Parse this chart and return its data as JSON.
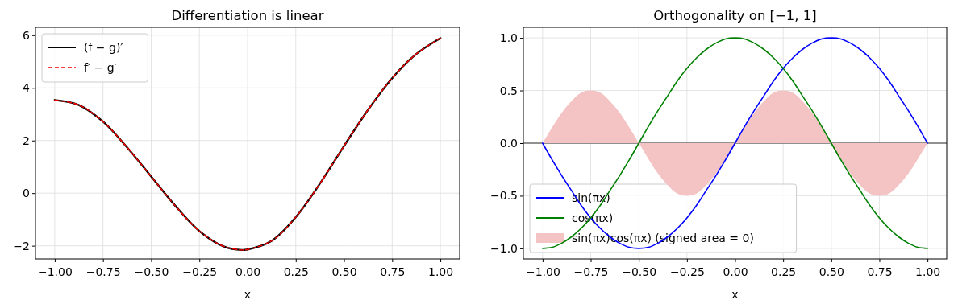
{
  "chart_data": [
    {
      "type": "line",
      "title": "Differentiation is linear",
      "xlabel": "x",
      "grid": true,
      "legend": "top left",
      "x": [
        -1,
        -0.875,
        -0.75,
        -0.625,
        -0.5,
        -0.375,
        -0.25,
        -0.125,
        -0.03,
        0,
        0.125,
        0.25,
        0.375,
        0.5,
        0.625,
        0.75,
        0.875,
        1
      ],
      "series": [
        {
          "name": "(f − g)′",
          "color": "#000000",
          "line_style": "solid",
          "values": [
            3.54,
            3.35,
            2.72,
            1.74,
            0.63,
            -0.48,
            -1.44,
            -2.02,
            -2.16,
            -2.14,
            -1.81,
            -0.91,
            0.36,
            1.79,
            3.17,
            4.37,
            5.29,
            5.89
          ]
        },
        {
          "name": "f′ − g′",
          "color": "#ff0000",
          "line_style": "dashed",
          "values": [
            3.54,
            3.35,
            2.72,
            1.74,
            0.63,
            -0.48,
            -1.44,
            -2.02,
            -2.16,
            -2.14,
            -1.81,
            -0.91,
            0.36,
            1.79,
            3.17,
            4.37,
            5.29,
            5.89
          ]
        }
      ],
      "xlim": [
        -1.1,
        1.1
      ],
      "xticks": [
        {
          "value": -1,
          "label": "−1.00"
        },
        {
          "value": -0.75,
          "label": "−0.75"
        },
        {
          "value": -0.5,
          "label": "−0.50"
        },
        {
          "value": -0.25,
          "label": "−0.25"
        },
        {
          "value": 0,
          "label": "0.00"
        },
        {
          "value": 0.25,
          "label": "0.25"
        },
        {
          "value": 0.5,
          "label": "0.50"
        },
        {
          "value": 0.75,
          "label": "0.75"
        },
        {
          "value": 1,
          "label": "1.00"
        }
      ],
      "ylim": [
        -2.5,
        6.3
      ],
      "yticks": [
        {
          "value": -2,
          "label": "−2"
        },
        0,
        2,
        4,
        6
      ]
    },
    {
      "type": "line",
      "title": "Orthogonality on [−1, 1]",
      "xlabel": "x",
      "grid": true,
      "legend": "bottom left",
      "x": [
        -1,
        -0.95,
        -0.9,
        -0.85,
        -0.8,
        -0.75,
        -0.7,
        -0.65,
        -0.6,
        -0.55,
        -0.5,
        -0.45,
        -0.4,
        -0.35,
        -0.3,
        -0.25,
        -0.2,
        -0.15,
        -0.1,
        -0.05,
        0,
        0.05,
        0.1,
        0.15,
        0.2,
        0.25,
        0.3,
        0.35,
        0.4,
        0.45,
        0.5,
        0.55,
        0.6,
        0.65,
        0.7,
        0.75,
        0.8,
        0.85,
        0.9,
        0.95,
        1
      ],
      "series": [
        {
          "type": "area",
          "name": "sin(πx)cos(πx) (signed area = 0)",
          "color": "#f4c4c4",
          "values": [
            0,
            0.15,
            0.29,
            0.4,
            0.48,
            0.5,
            0.48,
            0.4,
            0.29,
            0.15,
            0,
            -0.15,
            -0.29,
            -0.4,
            -0.48,
            -0.5,
            -0.48,
            -0.4,
            -0.29,
            -0.15,
            0,
            0.15,
            0.29,
            0.4,
            0.48,
            0.5,
            0.48,
            0.4,
            0.29,
            0.15,
            0,
            -0.15,
            -0.29,
            -0.4,
            -0.48,
            -0.5,
            -0.48,
            -0.4,
            -0.29,
            -0.15,
            0
          ]
        },
        {
          "name": "sin(πx)",
          "color": "#0000ff",
          "values": [
            0,
            -0.16,
            -0.31,
            -0.45,
            -0.59,
            -0.71,
            -0.81,
            -0.89,
            -0.95,
            -0.99,
            -1,
            -0.99,
            -0.95,
            -0.89,
            -0.81,
            -0.71,
            -0.59,
            -0.45,
            -0.31,
            -0.16,
            0,
            0.16,
            0.31,
            0.45,
            0.59,
            0.71,
            0.81,
            0.89,
            0.95,
            0.99,
            1,
            0.99,
            0.95,
            0.89,
            0.81,
            0.71,
            0.59,
            0.45,
            0.31,
            0.16,
            0
          ]
        },
        {
          "name": "cos(πx)",
          "color": "#008000",
          "values": [
            -1,
            -0.99,
            -0.95,
            -0.89,
            -0.81,
            -0.71,
            -0.59,
            -0.45,
            -0.31,
            -0.16,
            0,
            0.16,
            0.31,
            0.45,
            0.59,
            0.71,
            0.81,
            0.89,
            0.95,
            0.99,
            1,
            0.99,
            0.95,
            0.89,
            0.81,
            0.71,
            0.59,
            0.45,
            0.31,
            0.16,
            0,
            -0.16,
            -0.31,
            -0.45,
            -0.59,
            -0.71,
            -0.81,
            -0.89,
            -0.95,
            -0.99,
            -1
          ]
        }
      ],
      "ref_lines": [
        {
          "axis": "y",
          "value": 0,
          "color": "#000000"
        }
      ],
      "xlim": [
        -1.1,
        1.1
      ],
      "xticks": [
        {
          "value": -1,
          "label": "−1.00"
        },
        {
          "value": -0.75,
          "label": "−0.75"
        },
        {
          "value": -0.5,
          "label": "−0.50"
        },
        {
          "value": -0.25,
          "label": "−0.25"
        },
        {
          "value": 0,
          "label": "0.00"
        },
        {
          "value": 0.25,
          "label": "0.25"
        },
        {
          "value": 0.5,
          "label": "0.50"
        },
        {
          "value": 0.75,
          "label": "0.75"
        },
        {
          "value": 1,
          "label": "1.00"
        }
      ],
      "ylim": [
        -1.1,
        1.1
      ],
      "yticks": [
        {
          "value": -1,
          "label": "−1.0"
        },
        {
          "value": -0.5,
          "label": "−0.5"
        },
        {
          "value": 0,
          "label": "0.0"
        },
        {
          "value": 0.5,
          "label": "0.5"
        },
        {
          "value": 1,
          "label": "1.0"
        }
      ]
    }
  ]
}
